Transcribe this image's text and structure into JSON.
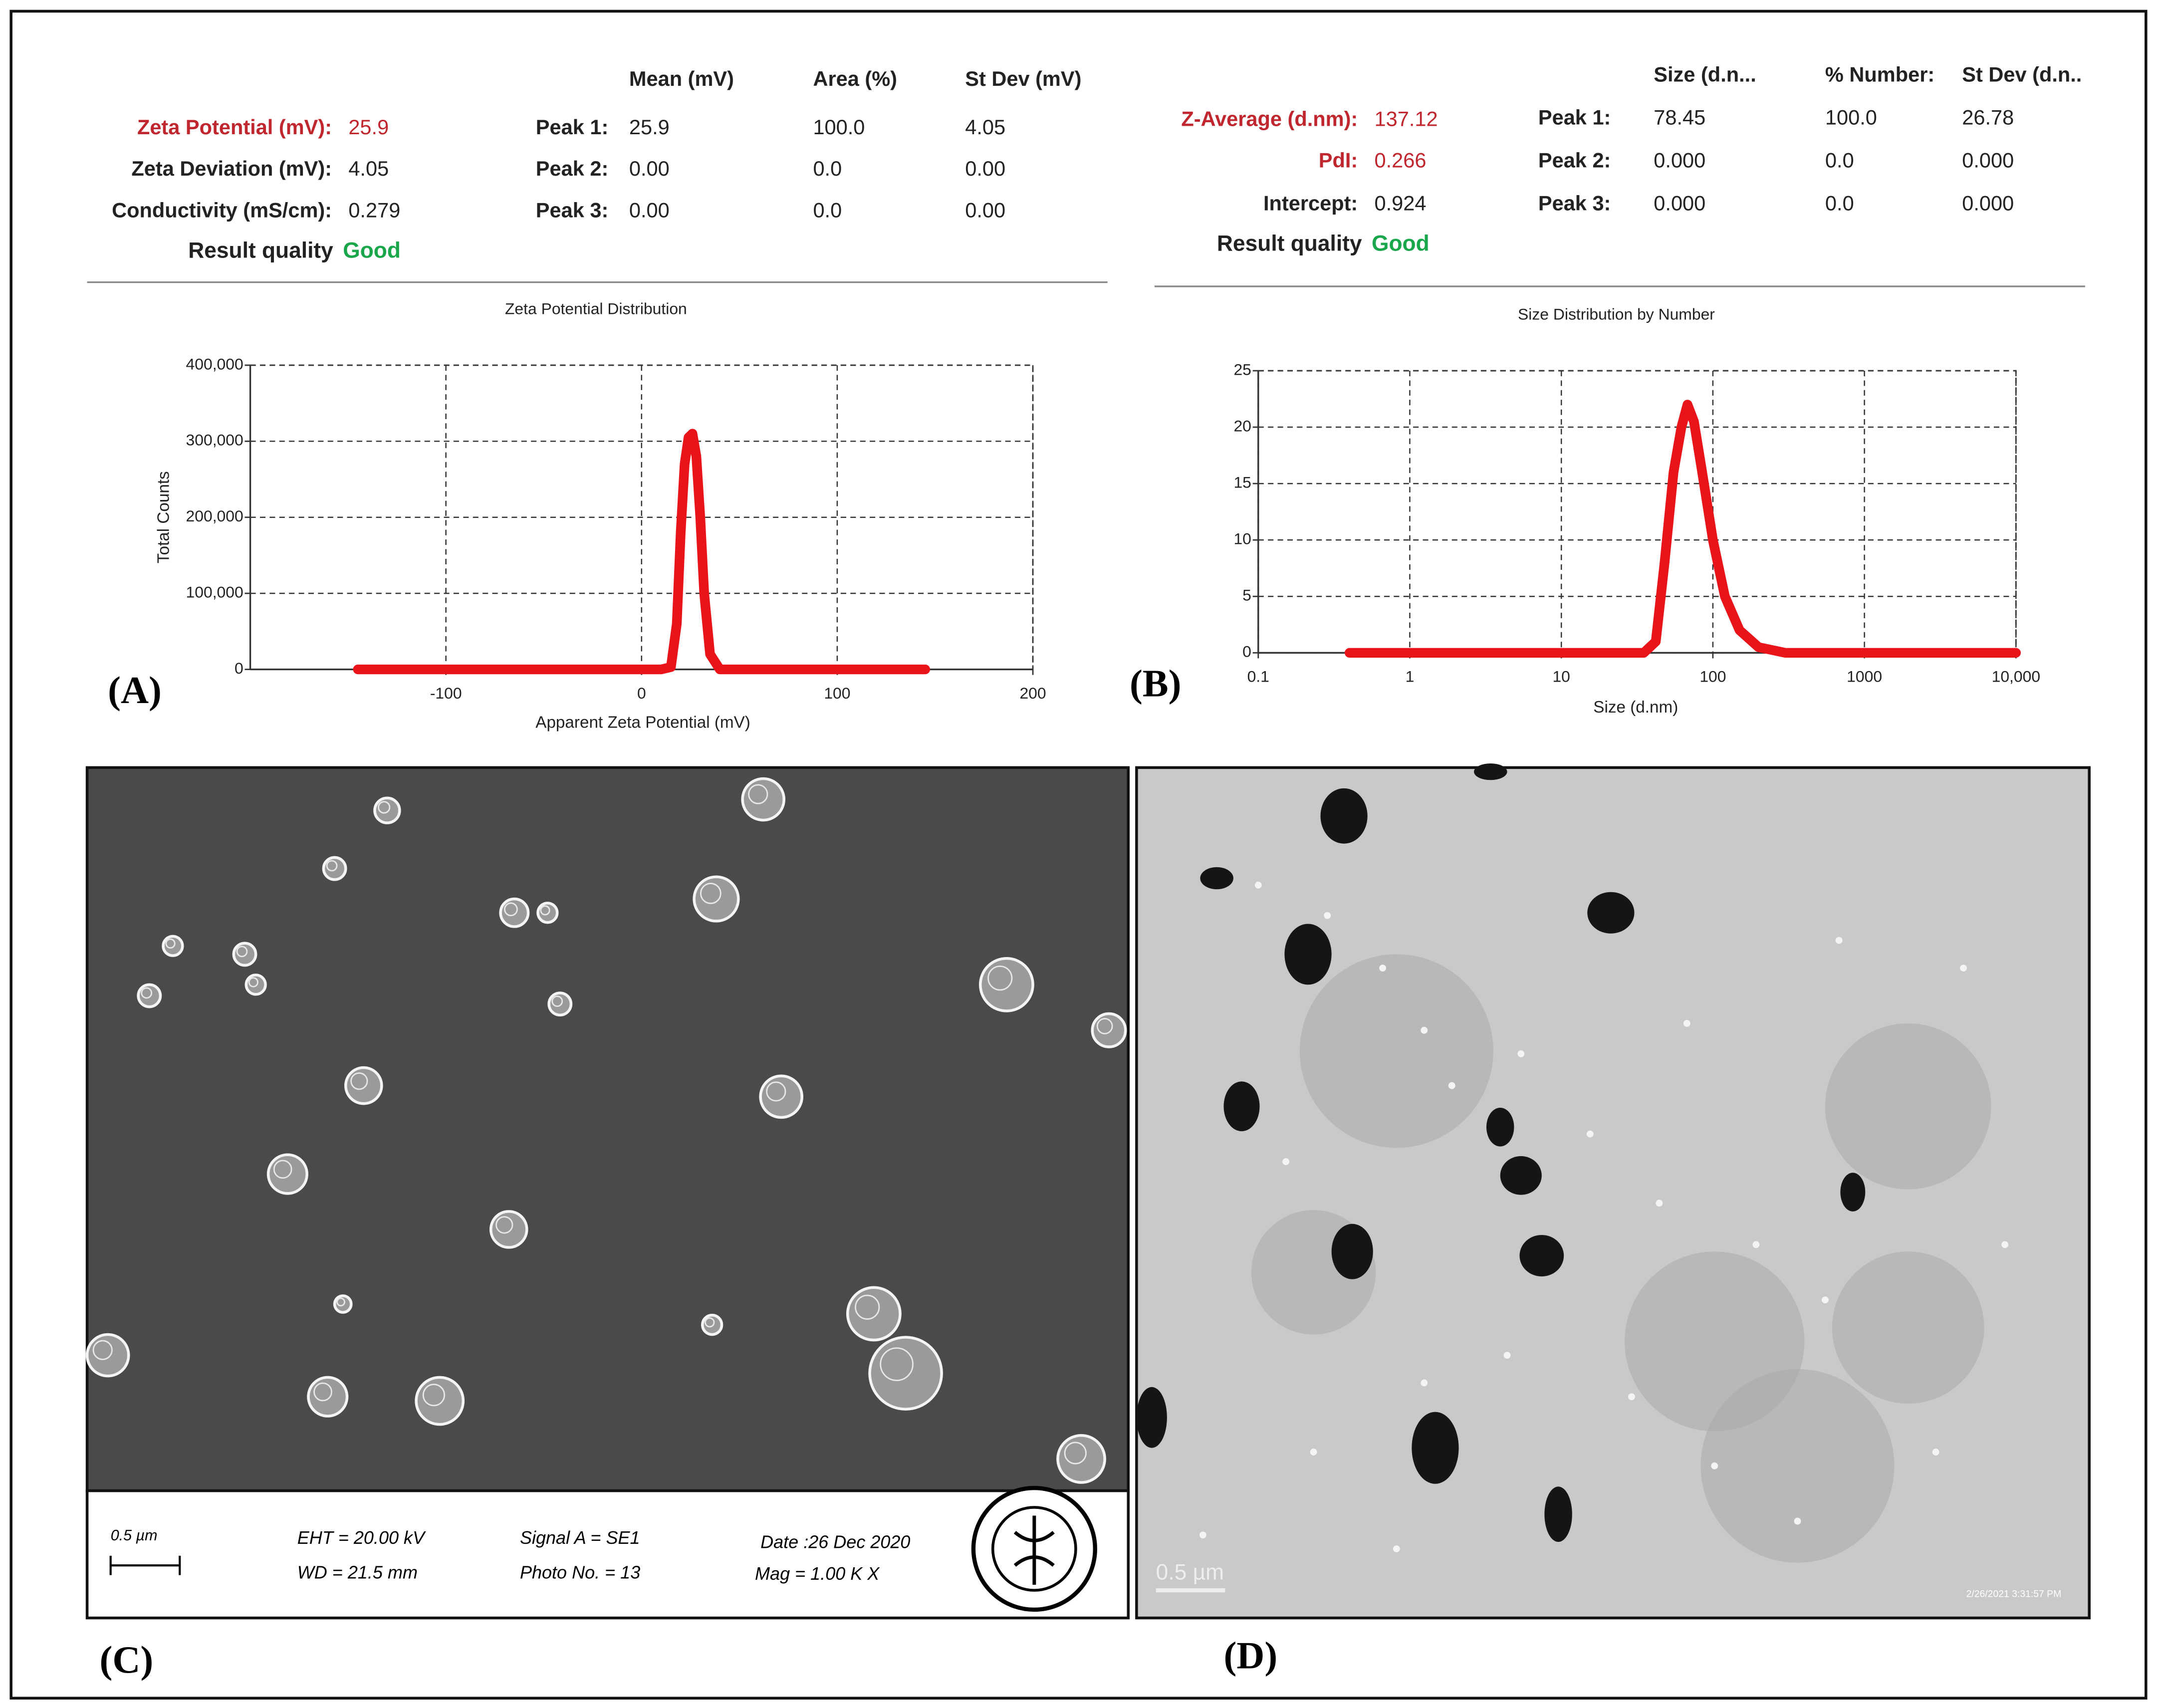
{
  "panels": [
    "(A)",
    "(B)",
    "(C)",
    "(D)"
  ],
  "zeta_table": {
    "summary": [
      [
        "Zeta Potential (mV):",
        "25.9"
      ],
      [
        "Zeta Deviation (mV):",
        "4.05"
      ],
      [
        "Conductivity (mS/cm):",
        "0.279"
      ]
    ],
    "quality": [
      "Result quality",
      "Good"
    ],
    "headers": [
      "Mean (mV)",
      "Area (%)",
      "St Dev (mV)"
    ],
    "rows": [
      [
        "Peak 1:",
        "25.9",
        "100.0",
        "4.05"
      ],
      [
        "Peak 2:",
        "0.00",
        "0.0",
        "0.00"
      ],
      [
        "Peak 3:",
        "0.00",
        "0.0",
        "0.00"
      ]
    ]
  },
  "size_table": {
    "summary": [
      [
        "Z-Average (d.nm):",
        "137.12"
      ],
      [
        "PdI:",
        "0.266"
      ],
      [
        "Intercept:",
        "0.924"
      ]
    ],
    "quality": [
      "Result quality",
      "Good"
    ],
    "headers": [
      "Size (d.n...",
      "% Number:",
      "St Dev (d.n.."
    ],
    "rows": [
      [
        "Peak 1:",
        "78.45",
        "100.0",
        "26.78"
      ],
      [
        "Peak 2:",
        "0.000",
        "0.0",
        "0.000"
      ],
      [
        "Peak 3:",
        "0.000",
        "0.0",
        "0.000"
      ]
    ]
  },
  "chart_data": [
    {
      "type": "line",
      "title": "Zeta Potential Distribution",
      "x_label": "Apparent Zeta Potential (mV)",
      "y_label": "Total Counts",
      "x": [
        -145,
        10,
        15,
        18,
        20,
        22,
        24,
        26,
        28,
        30,
        32,
        35,
        40,
        145
      ],
      "values": [
        0,
        0,
        3000,
        60000,
        180000,
        270000,
        305000,
        310000,
        280000,
        200000,
        100000,
        20000,
        0,
        0
      ],
      "color": "#e8141a",
      "xlim": [
        -200,
        200
      ],
      "xticks": [
        -100,
        0,
        100,
        200
      ],
      "ylim": [
        0,
        400000
      ],
      "yticks": [
        0,
        {
          "value": 100000,
          "label": "100,000"
        },
        {
          "value": 200000,
          "label": "200,000"
        },
        {
          "value": 300000,
          "label": "300,000"
        },
        {
          "value": 400000,
          "label": "400,000"
        }
      ],
      "grid": true,
      "xscale": "linear"
    },
    {
      "type": "line",
      "title": "Size Distribution by Number",
      "x_label": "Size (d.nm)",
      "x": [
        0.4,
        35,
        42,
        48,
        55,
        62,
        68,
        75,
        85,
        100,
        120,
        150,
        200,
        300,
        10000
      ],
      "values": [
        0,
        0,
        1,
        8,
        16,
        20,
        22,
        20.5,
        16,
        10,
        5,
        2,
        0.5,
        0,
        0
      ],
      "color": "#e8141a",
      "xlim": [
        0.1,
        10000
      ],
      "xticks": [
        0.1,
        1,
        10,
        100,
        1000,
        {
          "value": 10000,
          "label": "10,000"
        }
      ],
      "ylim": [
        0,
        25
      ],
      "yticks": [
        0,
        5,
        10,
        15,
        20,
        25
      ],
      "grid": true,
      "xscale": "log"
    }
  ],
  "sem": {
    "scale": "0.5 µm",
    "info": [
      "EHT = 20.00 kV",
      "WD = 21.5 mm",
      "Signal A = SE1",
      "Photo No. = 13",
      "Date :26 Dec 2020",
      "Mag =  1.00 K X"
    ]
  },
  "tem": {
    "scale": "0.5 µm",
    "stamp": "2/26/2021 3:31:57 PM"
  }
}
